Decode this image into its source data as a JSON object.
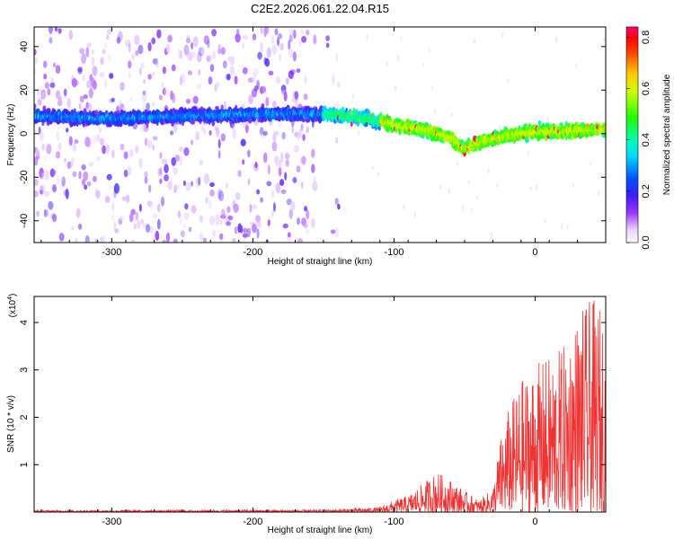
{
  "title": "C2E2.2026.061.22.04.R15",
  "colors": {
    "snr_line": "#ee3333",
    "axis": "#000000",
    "background": "#ffffff"
  },
  "chart_data": [
    {
      "type": "heatmap",
      "name": "spectrogram",
      "title": "C2E2.2026.061.22.04.R15",
      "xlabel": "Height of straight line (km)",
      "ylabel": "Frequency (Hz)",
      "xlim": [
        -355,
        50
      ],
      "ylim": [
        -50,
        49
      ],
      "x_ticks": [
        -300,
        -200,
        -100,
        0
      ],
      "y_ticks": [
        40,
        20,
        0,
        -20,
        -40
      ],
      "trend": {
        "x": [
          -350,
          -300,
          -250,
          -200,
          -150,
          -120,
          -100,
          -80,
          -60,
          -50,
          -40,
          -20,
          0,
          20,
          45
        ],
        "freq": [
          8,
          7,
          8,
          9,
          9,
          7,
          4,
          2,
          -2,
          -7,
          -4,
          -1,
          1,
          1,
          2
        ]
      },
      "colorbar": {
        "label": "Normalized spectral amplitude",
        "min": 0.0,
        "max": 0.84,
        "ticks": [
          0.0,
          0.2,
          0.4,
          0.6,
          0.8
        ],
        "tick_labels": [
          "0.0",
          "0.2",
          "0.4",
          "0.6",
          "0.8"
        ]
      }
    },
    {
      "type": "line",
      "name": "snr",
      "xlabel": "Height of straight line (km)",
      "ylabel": "SNR (10 * v/v)",
      "scale_label": "(x10",
      "scale_exp": "4",
      "scale_close": ")",
      "xlim": [
        -355,
        50
      ],
      "ylim": [
        0,
        4.55
      ],
      "x_ticks": [
        -300,
        -200,
        -100,
        0
      ],
      "y_ticks": [
        1,
        2,
        3,
        4
      ],
      "envelope": {
        "x": [
          -355,
          -150,
          -110,
          -100,
          -90,
          -80,
          -70,
          -60,
          -50,
          -40,
          -30,
          -25,
          -20,
          -10,
          0,
          10,
          20,
          30,
          40,
          50
        ],
        "y": [
          0.04,
          0.05,
          0.1,
          0.25,
          0.35,
          0.6,
          0.85,
          0.7,
          0.45,
          0.25,
          0.5,
          1.5,
          2.1,
          2.8,
          3.1,
          3.3,
          3.5,
          4.2,
          4.5,
          4.3
        ]
      }
    }
  ]
}
